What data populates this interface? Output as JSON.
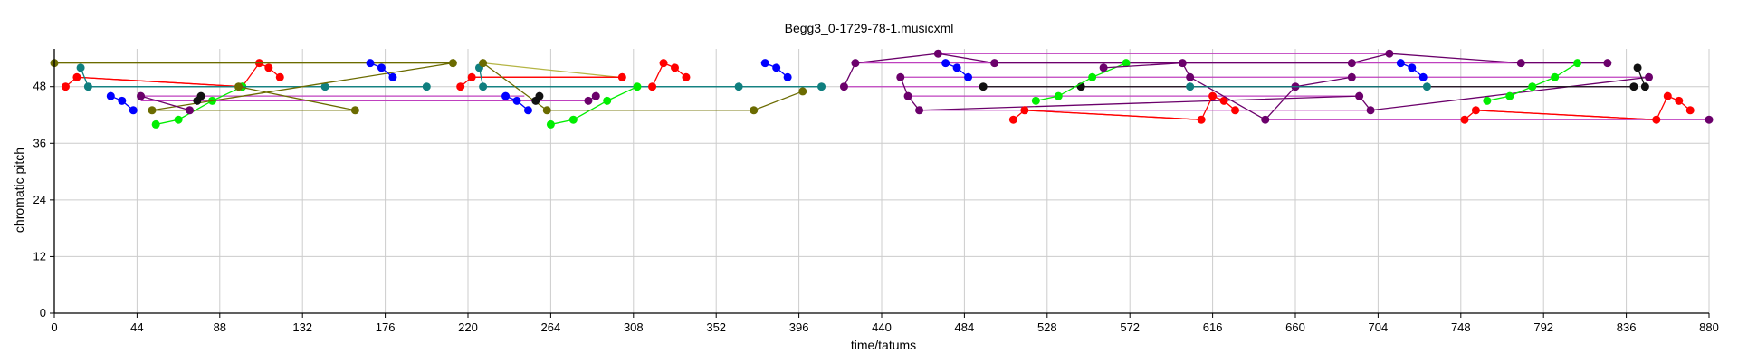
{
  "chart_data": {
    "type": "scatter",
    "title": "Begg3_0-1729-78-1.musicxml",
    "xlabel": "time/tatums",
    "ylabel": "chromatic pitch",
    "xlim": [
      0,
      880
    ],
    "ylim": [
      0,
      56
    ],
    "xticks": [
      0,
      44,
      88,
      132,
      176,
      220,
      264,
      308,
      352,
      396,
      440,
      484,
      528,
      572,
      616,
      660,
      704,
      748,
      792,
      836,
      880
    ],
    "yticks": [
      0,
      12,
      24,
      36,
      48
    ],
    "grid": true,
    "colors": {
      "red": "#ff0000",
      "blue": "#0000ff",
      "green": "#00ee00",
      "teal": "#0f7f7f",
      "olive": "#6b6b00",
      "oliveLine": "#b5b545",
      "purple": "#6b006b",
      "purpleLine": "#bf40bf",
      "black": "#111111",
      "grid": "#cccccc"
    },
    "series": [
      {
        "color": "red",
        "points": [
          [
            6,
            48
          ],
          [
            12,
            50
          ],
          [
            100,
            48
          ],
          [
            109,
            53
          ],
          [
            114,
            52
          ],
          [
            120,
            50
          ]
        ]
      },
      {
        "color": "blue",
        "points": [
          [
            30,
            46
          ],
          [
            36,
            45
          ],
          [
            42,
            43
          ]
        ]
      },
      {
        "color": "green",
        "points": [
          [
            54,
            40
          ],
          [
            66,
            41
          ],
          [
            84,
            45
          ],
          [
            100,
            48
          ]
        ]
      },
      {
        "color": "teal",
        "points": [
          [
            14,
            52
          ],
          [
            18,
            48
          ],
          [
            144,
            48
          ],
          [
            198,
            48
          ]
        ]
      },
      {
        "color": "olive",
        "points": [
          [
            0,
            53
          ],
          [
            212,
            53
          ],
          [
            52,
            43
          ],
          [
            160,
            43
          ],
          [
            98,
            48
          ]
        ]
      },
      {
        "color": "black",
        "points": [
          [
            76,
            45
          ],
          [
            78,
            46
          ]
        ]
      },
      {
        "color": "purple",
        "points": [
          [
            46,
            46
          ],
          [
            72,
            43
          ]
        ]
      },
      {
        "color": "blue",
        "points": [
          [
            168,
            53
          ],
          [
            174,
            52
          ],
          [
            180,
            50
          ]
        ]
      },
      {
        "color": "red",
        "points": [
          [
            216,
            48
          ],
          [
            222,
            50
          ],
          [
            302,
            50
          ]
        ]
      },
      {
        "color": "teal",
        "points": [
          [
            226,
            52
          ],
          [
            228,
            48
          ],
          [
            364,
            48
          ],
          [
            408,
            48
          ]
        ]
      },
      {
        "color": "blue",
        "points": [
          [
            240,
            46
          ],
          [
            246,
            45
          ],
          [
            252,
            43
          ]
        ]
      },
      {
        "color": "green",
        "points": [
          [
            264,
            40
          ],
          [
            276,
            41
          ],
          [
            294,
            45
          ],
          [
            310,
            48
          ]
        ]
      },
      {
        "color": "olive",
        "points": [
          [
            228,
            53
          ],
          [
            262,
            43
          ],
          [
            372,
            43
          ],
          [
            398,
            47
          ]
        ]
      },
      {
        "color": "black",
        "points": [
          [
            256,
            45
          ],
          [
            258,
            46
          ]
        ]
      },
      {
        "color": "purple",
        "points": [
          [
            284,
            45
          ],
          [
            288,
            46
          ]
        ]
      },
      {
        "color": "red",
        "points": [
          [
            318,
            48
          ],
          [
            324,
            53
          ],
          [
            330,
            52
          ],
          [
            336,
            50
          ]
        ]
      },
      {
        "color": "blue",
        "points": [
          [
            378,
            53
          ],
          [
            384,
            52
          ],
          [
            390,
            50
          ]
        ]
      },
      {
        "color": "purple",
        "points": [
          [
            420,
            48
          ],
          [
            426,
            53
          ],
          [
            470,
            55
          ],
          [
            500,
            53
          ],
          [
            690,
            53
          ],
          [
            710,
            55
          ],
          [
            780,
            53
          ],
          [
            826,
            53
          ]
        ]
      },
      {
        "color": "blue",
        "points": [
          [
            474,
            53
          ],
          [
            480,
            52
          ],
          [
            486,
            50
          ]
        ]
      },
      {
        "color": "purple",
        "points": [
          [
            450,
            50
          ],
          [
            454,
            46
          ],
          [
            460,
            43
          ],
          [
            694,
            46
          ],
          [
            700,
            43
          ],
          [
            848,
            50
          ]
        ]
      },
      {
        "color": "black",
        "points": [
          [
            494,
            48
          ],
          [
            546,
            48
          ],
          [
            840,
            48
          ]
        ]
      },
      {
        "color": "red",
        "points": [
          [
            510,
            41
          ],
          [
            516,
            43
          ],
          [
            610,
            41
          ],
          [
            616,
            46
          ],
          [
            622,
            45
          ],
          [
            628,
            43
          ]
        ]
      },
      {
        "color": "green",
        "points": [
          [
            522,
            45
          ],
          [
            534,
            46
          ],
          [
            552,
            50
          ],
          [
            570,
            53
          ]
        ]
      },
      {
        "color": "purple",
        "points": [
          [
            558,
            52
          ],
          [
            600,
            53
          ],
          [
            604,
            50
          ],
          [
            644,
            41
          ],
          [
            660,
            48
          ],
          [
            690,
            50
          ]
        ]
      },
      {
        "color": "teal",
        "points": [
          [
            604,
            48
          ],
          [
            730,
            48
          ]
        ]
      },
      {
        "color": "blue",
        "points": [
          [
            716,
            53
          ],
          [
            722,
            52
          ],
          [
            728,
            50
          ]
        ]
      },
      {
        "color": "green",
        "points": [
          [
            762,
            45
          ],
          [
            774,
            46
          ],
          [
            786,
            48
          ],
          [
            798,
            50
          ],
          [
            810,
            53
          ]
        ]
      },
      {
        "color": "red",
        "points": [
          [
            750,
            41
          ],
          [
            756,
            43
          ],
          [
            852,
            41
          ],
          [
            858,
            46
          ],
          [
            864,
            45
          ],
          [
            870,
            43
          ]
        ]
      },
      {
        "color": "black",
        "points": [
          [
            842,
            52
          ],
          [
            846,
            48
          ]
        ]
      },
      {
        "color": "purple",
        "points": [
          [
            880,
            41
          ]
        ]
      }
    ],
    "segments": [
      {
        "color": "oliveLine",
        "from": [
          0,
          53
        ],
        "to": [
          212,
          53
        ]
      },
      {
        "color": "oliveLine",
        "from": [
          52,
          43
        ],
        "to": [
          160,
          43
        ]
      },
      {
        "color": "oliveLine",
        "from": [
          262,
          43
        ],
        "to": [
          372,
          43
        ]
      },
      {
        "color": "oliveLine",
        "from": [
          228,
          53
        ],
        "to": [
          300,
          50
        ]
      },
      {
        "color": "teal",
        "from": [
          18,
          48
        ],
        "to": [
          198,
          48
        ]
      },
      {
        "color": "teal",
        "from": [
          228,
          48
        ],
        "to": [
          408,
          48
        ]
      },
      {
        "color": "teal",
        "from": [
          604,
          48
        ],
        "to": [
          730,
          48
        ]
      },
      {
        "color": "purpleLine",
        "from": [
          46,
          46
        ],
        "to": [
          250,
          46
        ]
      },
      {
        "color": "purpleLine",
        "from": [
          46,
          45
        ],
        "to": [
          282,
          45
        ]
      },
      {
        "color": "purpleLine",
        "from": [
          420,
          48
        ],
        "to": [
          840,
          48
        ]
      },
      {
        "color": "purpleLine",
        "from": [
          426,
          53
        ],
        "to": [
          826,
          53
        ]
      },
      {
        "color": "purpleLine",
        "from": [
          470,
          55
        ],
        "to": [
          710,
          55
        ]
      },
      {
        "color": "purpleLine",
        "from": [
          450,
          50
        ],
        "to": [
          848,
          50
        ]
      },
      {
        "color": "purpleLine",
        "from": [
          454,
          46
        ],
        "to": [
          694,
          46
        ]
      },
      {
        "color": "purpleLine",
        "from": [
          460,
          43
        ],
        "to": [
          700,
          43
        ]
      },
      {
        "color": "purpleLine",
        "from": [
          644,
          41
        ],
        "to": [
          880,
          41
        ]
      },
      {
        "color": "red",
        "from": [
          12,
          50
        ],
        "to": [
          100,
          48
        ]
      },
      {
        "color": "red",
        "from": [
          222,
          50
        ],
        "to": [
          302,
          50
        ]
      },
      {
        "color": "red",
        "from": [
          516,
          43
        ],
        "to": [
          610,
          41
        ]
      },
      {
        "color": "red",
        "from": [
          756,
          43
        ],
        "to": [
          852,
          41
        ]
      }
    ]
  }
}
